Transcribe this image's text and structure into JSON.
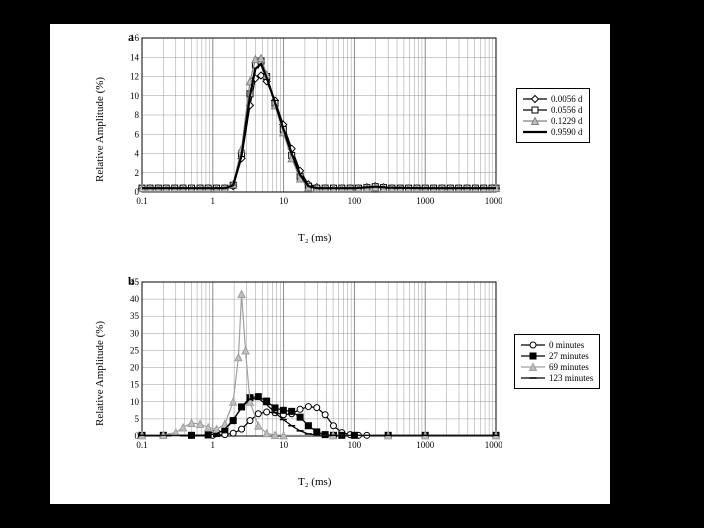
{
  "chartA": {
    "type": "line",
    "panel_label": "a",
    "xlabel": "T₂ (ms)",
    "ylabel": "Relative Amplitude (%)",
    "label_fontsize": 11,
    "xscale": "log",
    "xlim": [
      0.1,
      10000
    ],
    "xticks": [
      0.1,
      1,
      10,
      100,
      1000,
      10000
    ],
    "xtick_labels": [
      "0.1",
      "1",
      "10",
      "100",
      "1000",
      "10000"
    ],
    "ylim": [
      0,
      16
    ],
    "yticks": [
      0,
      2,
      4,
      6,
      8,
      10,
      12,
      14,
      16
    ],
    "grid_color": "#808080",
    "bg_color": "#ffffff",
    "border_color": "#000000",
    "line_width": 1.2,
    "series": [
      {
        "name": "0.0056 d",
        "color": "#000000",
        "marker": "diamond",
        "marker_fill": "#ffffff",
        "line": "solid",
        "data": [
          [
            0.1,
            0.4
          ],
          [
            0.13,
            0.4
          ],
          [
            0.17,
            0.4
          ],
          [
            0.22,
            0.4
          ],
          [
            0.29,
            0.4
          ],
          [
            0.38,
            0.4
          ],
          [
            0.5,
            0.4
          ],
          [
            0.66,
            0.4
          ],
          [
            0.86,
            0.4
          ],
          [
            1.13,
            0.4
          ],
          [
            1.48,
            0.4
          ],
          [
            1.94,
            0.6
          ],
          [
            2.55,
            3.5
          ],
          [
            3.35,
            9.0
          ],
          [
            4.0,
            11.8
          ],
          [
            4.8,
            12.1
          ],
          [
            5.76,
            11.5
          ],
          [
            7.56,
            9.5
          ],
          [
            9.9,
            7.0
          ],
          [
            13.0,
            4.5
          ],
          [
            17.1,
            2.2
          ],
          [
            22.4,
            0.8
          ],
          [
            29.4,
            0.5
          ],
          [
            38.6,
            0.4
          ],
          [
            50.6,
            0.4
          ],
          [
            66.4,
            0.4
          ],
          [
            87.1,
            0.4
          ],
          [
            114,
            0.4
          ],
          [
            150,
            0.5
          ],
          [
            197,
            0.6
          ],
          [
            258,
            0.5
          ],
          [
            339,
            0.4
          ],
          [
            444,
            0.4
          ],
          [
            583,
            0.4
          ],
          [
            765,
            0.4
          ],
          [
            1003,
            0.4
          ],
          [
            1316,
            0.4
          ],
          [
            1726,
            0.4
          ],
          [
            2264,
            0.4
          ],
          [
            2970,
            0.4
          ],
          [
            3896,
            0.4
          ],
          [
            5111,
            0.4
          ],
          [
            6704,
            0.4
          ],
          [
            8793,
            0.4
          ],
          [
            10000,
            0.4
          ]
        ]
      },
      {
        "name": "0.0556 d",
        "color": "#000000",
        "marker": "square",
        "marker_fill": "#ffffff",
        "line": "solid",
        "data": [
          [
            0.1,
            0.4
          ],
          [
            0.13,
            0.4
          ],
          [
            0.17,
            0.4
          ],
          [
            0.22,
            0.4
          ],
          [
            0.29,
            0.4
          ],
          [
            0.38,
            0.4
          ],
          [
            0.5,
            0.4
          ],
          [
            0.66,
            0.4
          ],
          [
            0.86,
            0.4
          ],
          [
            1.13,
            0.4
          ],
          [
            1.48,
            0.4
          ],
          [
            1.94,
            0.7
          ],
          [
            2.55,
            4.0
          ],
          [
            3.35,
            10.2
          ],
          [
            4.0,
            13.2
          ],
          [
            4.8,
            13.6
          ],
          [
            5.76,
            12.0
          ],
          [
            7.56,
            9.2
          ],
          [
            9.9,
            6.5
          ],
          [
            13.0,
            3.8
          ],
          [
            17.1,
            1.6
          ],
          [
            22.4,
            0.6
          ],
          [
            29.4,
            0.4
          ],
          [
            38.6,
            0.4
          ],
          [
            50.6,
            0.4
          ],
          [
            66.4,
            0.4
          ],
          [
            87.1,
            0.4
          ],
          [
            114,
            0.4
          ],
          [
            150,
            0.45
          ],
          [
            197,
            0.55
          ],
          [
            258,
            0.45
          ],
          [
            339,
            0.4
          ],
          [
            444,
            0.4
          ],
          [
            583,
            0.4
          ],
          [
            765,
            0.4
          ],
          [
            1003,
            0.4
          ],
          [
            1316,
            0.4
          ],
          [
            1726,
            0.4
          ],
          [
            2264,
            0.4
          ],
          [
            2970,
            0.4
          ],
          [
            3896,
            0.4
          ],
          [
            5111,
            0.4
          ],
          [
            6704,
            0.4
          ],
          [
            8793,
            0.4
          ],
          [
            10000,
            0.4
          ]
        ]
      },
      {
        "name": "0.1229 d",
        "color": "#808080",
        "marker": "triangle",
        "marker_fill": "#bfbfbf",
        "line": "solid",
        "data": [
          [
            0.1,
            0.4
          ],
          [
            0.13,
            0.4
          ],
          [
            0.17,
            0.4
          ],
          [
            0.22,
            0.4
          ],
          [
            0.29,
            0.4
          ],
          [
            0.38,
            0.4
          ],
          [
            0.5,
            0.4
          ],
          [
            0.66,
            0.4
          ],
          [
            0.86,
            0.4
          ],
          [
            1.13,
            0.4
          ],
          [
            1.48,
            0.4
          ],
          [
            1.94,
            0.8
          ],
          [
            2.55,
            4.5
          ],
          [
            3.35,
            11.5
          ],
          [
            4.0,
            13.8
          ],
          [
            4.8,
            13.9
          ],
          [
            5.76,
            12.2
          ],
          [
            7.56,
            9.0
          ],
          [
            9.9,
            6.2
          ],
          [
            13.0,
            3.5
          ],
          [
            17.1,
            1.4
          ],
          [
            22.4,
            0.5
          ],
          [
            29.4,
            0.4
          ],
          [
            38.6,
            0.4
          ],
          [
            50.6,
            0.4
          ],
          [
            66.4,
            0.4
          ],
          [
            87.1,
            0.4
          ],
          [
            114,
            0.4
          ],
          [
            150,
            0.4
          ],
          [
            197,
            0.5
          ],
          [
            258,
            0.4
          ],
          [
            339,
            0.4
          ],
          [
            444,
            0.4
          ],
          [
            583,
            0.4
          ],
          [
            765,
            0.4
          ],
          [
            1003,
            0.4
          ],
          [
            1316,
            0.4
          ],
          [
            1726,
            0.4
          ],
          [
            2264,
            0.4
          ],
          [
            2970,
            0.4
          ],
          [
            3896,
            0.4
          ],
          [
            5111,
            0.4
          ],
          [
            6704,
            0.4
          ],
          [
            8793,
            0.4
          ],
          [
            10000,
            0.4
          ]
        ]
      },
      {
        "name": "0.9590 d",
        "color": "#000000",
        "marker": "none",
        "marker_fill": "#000000",
        "line": "solid_thick",
        "data": [
          [
            0.1,
            0.4
          ],
          [
            0.5,
            0.4
          ],
          [
            1,
            0.4
          ],
          [
            1.5,
            0.4
          ],
          [
            1.94,
            0.7
          ],
          [
            2.55,
            3.8
          ],
          [
            3.35,
            10.0
          ],
          [
            4.0,
            12.8
          ],
          [
            4.8,
            13.3
          ],
          [
            5.76,
            11.9
          ],
          [
            7.56,
            9.3
          ],
          [
            9.9,
            6.6
          ],
          [
            13.0,
            4.0
          ],
          [
            17.1,
            1.8
          ],
          [
            22.4,
            0.6
          ],
          [
            29.4,
            0.4
          ],
          [
            50,
            0.4
          ],
          [
            100,
            0.4
          ],
          [
            200,
            0.55
          ],
          [
            300,
            0.45
          ],
          [
            1000,
            0.4
          ],
          [
            3000,
            0.4
          ],
          [
            10000,
            0.4
          ]
        ]
      }
    ]
  },
  "chartB": {
    "type": "line",
    "panel_label": "b",
    "xlabel": "T₂ (ms)",
    "ylabel": "Relative Amplitude (%)",
    "label_fontsize": 11,
    "xscale": "log",
    "xlim": [
      0.1,
      10000
    ],
    "xticks": [
      0.1,
      1,
      10,
      100,
      1000,
      10000
    ],
    "xtick_labels": [
      "0.1",
      "1",
      "10",
      "100",
      "1000",
      "10000"
    ],
    "ylim": [
      0,
      45
    ],
    "yticks": [
      0,
      5,
      10,
      15,
      20,
      25,
      30,
      35,
      40,
      45
    ],
    "grid_color": "#808080",
    "bg_color": "#ffffff",
    "border_color": "#000000",
    "line_width": 1.2,
    "series": [
      {
        "name": "0 minutes",
        "color": "#000000",
        "marker": "circle",
        "marker_fill": "#ffffff",
        "line": "solid",
        "data": [
          [
            0.1,
            0.2
          ],
          [
            0.2,
            0.2
          ],
          [
            0.5,
            0.2
          ],
          [
            1,
            0.2
          ],
          [
            1.48,
            0.4
          ],
          [
            1.94,
            0.8
          ],
          [
            2.55,
            2.0
          ],
          [
            3.35,
            4.5
          ],
          [
            4.39,
            6.5
          ],
          [
            5.76,
            7.0
          ],
          [
            7.56,
            6.8
          ],
          [
            9.92,
            6.2
          ],
          [
            13.0,
            6.5
          ],
          [
            17.1,
            7.8
          ],
          [
            22.4,
            8.6
          ],
          [
            29.4,
            8.3
          ],
          [
            38.6,
            6.2
          ],
          [
            50.6,
            3.0
          ],
          [
            66.4,
            1.0
          ],
          [
            87.1,
            0.4
          ],
          [
            114,
            0.2
          ],
          [
            150,
            0.2
          ],
          [
            300,
            0.2
          ],
          [
            1000,
            0.2
          ],
          [
            10000,
            0.2
          ]
        ]
      },
      {
        "name": "27 minutes",
        "color": "#000000",
        "marker": "square",
        "marker_fill": "#000000",
        "line": "solid",
        "data": [
          [
            0.1,
            0.2
          ],
          [
            0.2,
            0.2
          ],
          [
            0.5,
            0.2
          ],
          [
            0.86,
            0.3
          ],
          [
            1.13,
            0.7
          ],
          [
            1.48,
            1.8
          ],
          [
            1.94,
            4.5
          ],
          [
            2.55,
            8.5
          ],
          [
            3.35,
            11.2
          ],
          [
            4.39,
            11.5
          ],
          [
            5.76,
            10.2
          ],
          [
            7.56,
            8.2
          ],
          [
            9.92,
            7.5
          ],
          [
            13.0,
            7.2
          ],
          [
            17.1,
            5.5
          ],
          [
            22.4,
            3.0
          ],
          [
            29.4,
            1.2
          ],
          [
            38.6,
            0.4
          ],
          [
            50.6,
            0.2
          ],
          [
            66.4,
            0.2
          ],
          [
            100,
            0.2
          ],
          [
            300,
            0.2
          ],
          [
            1000,
            0.2
          ],
          [
            10000,
            0.2
          ]
        ]
      },
      {
        "name": "69 minutes",
        "color": "#a0a0a0",
        "marker": "triangle",
        "marker_fill": "#bfbfbf",
        "line": "solid",
        "data": [
          [
            0.1,
            0.2
          ],
          [
            0.2,
            0.3
          ],
          [
            0.3,
            1.0
          ],
          [
            0.38,
            2.5
          ],
          [
            0.5,
            3.8
          ],
          [
            0.66,
            3.5
          ],
          [
            0.86,
            2.5
          ],
          [
            1.13,
            2.0
          ],
          [
            1.48,
            3.5
          ],
          [
            1.94,
            10.0
          ],
          [
            2.3,
            23.0
          ],
          [
            2.55,
            41.5
          ],
          [
            2.9,
            25.0
          ],
          [
            3.35,
            10.0
          ],
          [
            4.39,
            3.0
          ],
          [
            5.76,
            0.8
          ],
          [
            7.56,
            0.3
          ],
          [
            10,
            0.2
          ],
          [
            50,
            0.2
          ],
          [
            300,
            0.2
          ],
          [
            1000,
            0.2
          ],
          [
            10000,
            0.2
          ]
        ]
      },
      {
        "name": "123 minutes",
        "color": "#000000",
        "marker": "dash",
        "marker_fill": "#000000",
        "line": "solid",
        "data": [
          [
            0.1,
            0.2
          ],
          [
            0.5,
            0.2
          ],
          [
            0.86,
            0.3
          ],
          [
            1.13,
            0.7
          ],
          [
            1.48,
            2.0
          ],
          [
            1.94,
            4.8
          ],
          [
            2.55,
            8.2
          ],
          [
            3.35,
            10.8
          ],
          [
            4.39,
            11.0
          ],
          [
            5.76,
            9.2
          ],
          [
            7.56,
            6.8
          ],
          [
            9.92,
            4.8
          ],
          [
            13.0,
            3.0
          ],
          [
            17.1,
            1.5
          ],
          [
            22.4,
            0.6
          ],
          [
            29.4,
            0.3
          ],
          [
            50,
            0.2
          ],
          [
            100,
            0.2
          ],
          [
            300,
            0.2
          ],
          [
            1000,
            0.2
          ],
          [
            10000,
            0.2
          ]
        ]
      }
    ]
  }
}
